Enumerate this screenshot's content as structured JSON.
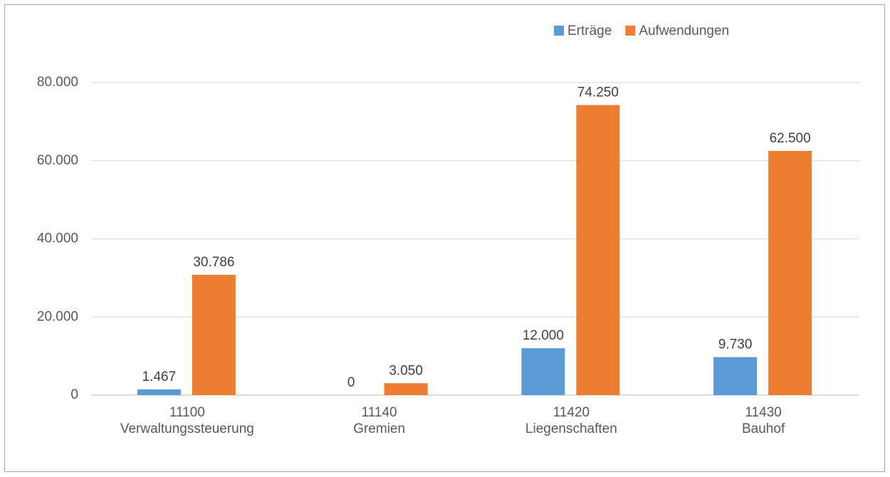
{
  "chart_data": {
    "type": "bar",
    "categories": [
      [
        "11100",
        "Verwaltungssteuerung"
      ],
      [
        "11140",
        "Gremien"
      ],
      [
        "11420",
        "Liegenschaften"
      ],
      [
        "11430",
        "Bauhof"
      ]
    ],
    "series": [
      {
        "name": "Erträge",
        "color": "#5b9bd5",
        "values": [
          1467,
          0,
          12000,
          9730
        ],
        "value_labels": [
          "1.467",
          "0",
          "12.000",
          "9.730"
        ]
      },
      {
        "name": "Aufwendungen",
        "color": "#ed7d31",
        "values": [
          30786,
          3050,
          74250,
          62500
        ],
        "value_labels": [
          "30.786",
          "3.050",
          "74.250",
          "62.500"
        ]
      }
    ],
    "ylim": [
      0,
      80000
    ],
    "yticks": [
      0,
      {
        "value": 20000,
        "label": "20.000"
      },
      {
        "value": 40000,
        "label": "40.000"
      },
      {
        "value": 60000,
        "label": "60.000"
      },
      {
        "value": 80000,
        "label": "80.000"
      }
    ],
    "grid": true,
    "legend": "top"
  }
}
